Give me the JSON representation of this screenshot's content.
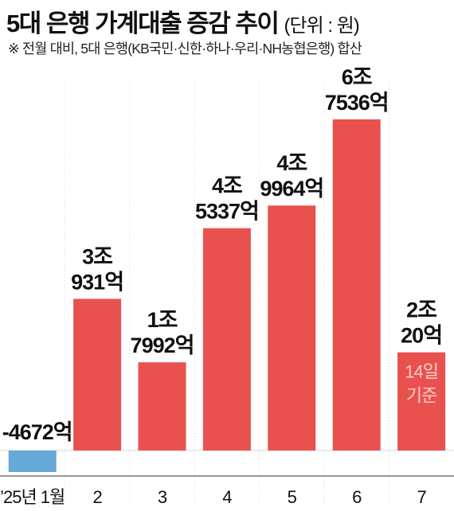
{
  "header": {
    "title": "5대 은행 가계대출 증감 추이",
    "unit": "(단위 : 원)",
    "subtitle": "※ 전월 대비, 5대 은행(KB국민·신한·하나·우리·NH농협은행) 합산"
  },
  "colors": {
    "positive": "#e9514f",
    "negative": "#64a9d8",
    "inside_label": "#ffcdc6",
    "grid": "#d6d6d6",
    "axis": "#777777",
    "text": "#111111"
  },
  "chart_data": {
    "type": "bar",
    "title": "5대 은행 가계대출 증감 추이",
    "unit": "원",
    "categories": [
      "’25년 1월",
      "2",
      "3",
      "4",
      "5",
      "6",
      "7"
    ],
    "values": [
      -467200000000,
      3093100000000,
      1799200000000,
      4533700000000,
      4996400000000,
      6753600000000,
      2002000000000
    ],
    "data_labels": [
      [
        "-4672억"
      ],
      [
        "3조",
        "931억"
      ],
      [
        "1조",
        "7992억"
      ],
      [
        "4조",
        "5337억"
      ],
      [
        "4조",
        "9964억"
      ],
      [
        "6조",
        "7536억"
      ],
      [
        "2조",
        "20억"
      ]
    ],
    "annotations": [
      {
        "category": "7",
        "lines": [
          "14일",
          "기준"
        ]
      }
    ],
    "ylim": [
      -467200000000,
      6753600000000
    ],
    "grid": "vertical dotted separators",
    "legend": "none"
  }
}
